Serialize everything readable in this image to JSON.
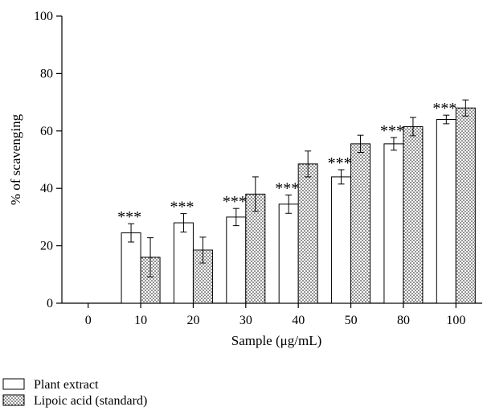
{
  "chart_data": {
    "type": "bar",
    "xlabel": "Sample (μg/mL)",
    "ylabel": "% of scavenging",
    "ylim": [
      0,
      100
    ],
    "yticks": [
      0,
      20,
      40,
      60,
      80,
      100
    ],
    "categories": [
      "0",
      "10",
      "20",
      "30",
      "40",
      "50",
      "80",
      "100"
    ],
    "series": [
      {
        "name": "Plant extract",
        "pattern": "open",
        "values": [
          null,
          24.5,
          28,
          30,
          34.5,
          44,
          55.5,
          64
        ],
        "errors": [
          null,
          3.2,
          3.2,
          3.0,
          3.2,
          2.5,
          2.2,
          1.5
        ]
      },
      {
        "name": "Lipoic acid (standard)",
        "pattern": "dotted",
        "values": [
          null,
          16,
          18.5,
          38,
          48.5,
          55.5,
          61.5,
          68
        ],
        "errors": [
          null,
          6.8,
          4.5,
          6.0,
          4.5,
          3.0,
          3.2,
          2.8
        ]
      }
    ],
    "significance": [
      "",
      "***",
      "***",
      "***",
      "***",
      "***",
      "***",
      "***"
    ],
    "legend_position": "bottom-left",
    "grid": false
  }
}
